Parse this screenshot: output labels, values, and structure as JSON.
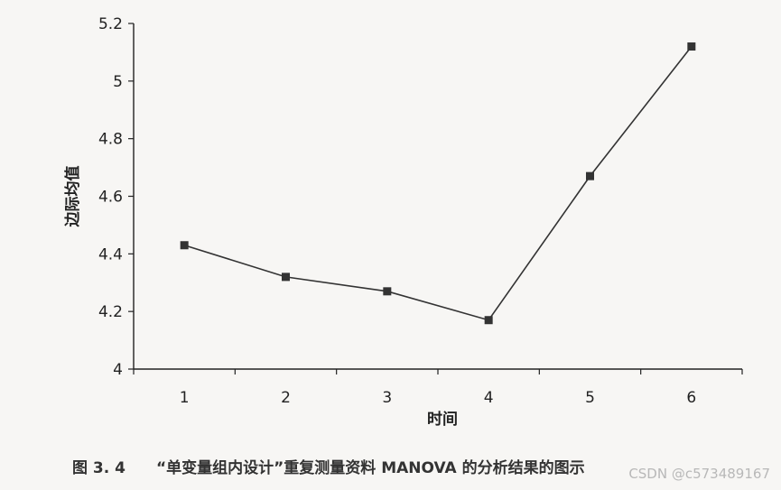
{
  "chart_data": {
    "type": "line",
    "x": [
      1,
      2,
      3,
      4,
      5,
      6
    ],
    "series": [
      {
        "values": [
          4.43,
          4.32,
          4.27,
          4.17,
          4.67,
          5.12
        ]
      }
    ],
    "xlabel": "时间",
    "ylabel": "边际均值",
    "xlim": [
      0.5,
      6.5
    ],
    "ylim": [
      4,
      5.2
    ],
    "yticks": [
      4,
      4.2,
      4.4,
      4.6,
      4.8,
      5,
      5.2
    ],
    "xticks": [
      1,
      2,
      3,
      4,
      5,
      6
    ],
    "grid": false,
    "line_color": "#333333",
    "marker": "square"
  },
  "caption": {
    "figure_number": "图 3. 4",
    "text": "“单变量组内设计”重复测量资料 MANOVA 的分析结果的图示"
  },
  "watermark": "CSDN @c573489167"
}
